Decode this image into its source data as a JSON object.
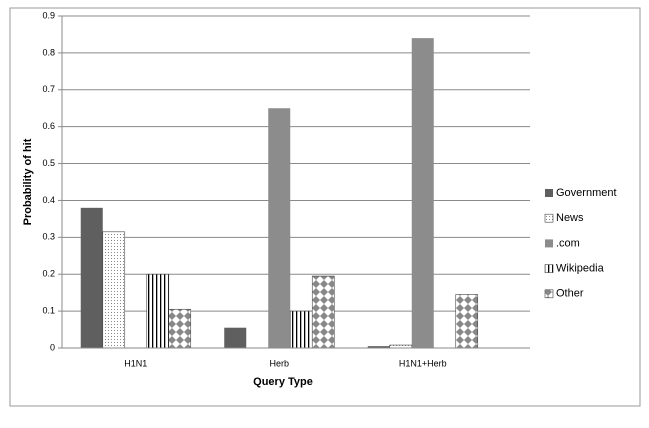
{
  "chart_data": {
    "type": "bar",
    "xlabel": "Query Type",
    "ylabel": "Probability of hit",
    "categories": [
      "H1N1",
      "Herb",
      "H1N1+Herb"
    ],
    "series": [
      {
        "name": "Government",
        "color": "#5f5f5f",
        "pattern": "solid",
        "values": [
          0.38,
          0.055,
          0.005
        ]
      },
      {
        "name": "News",
        "color": "#ffffff",
        "pattern": "dots",
        "values": [
          0.315,
          0,
          0.008
        ]
      },
      {
        "name": ".com",
        "color": "#8c8c8c",
        "pattern": "solid",
        "values": [
          0,
          0.65,
          0.84
        ]
      },
      {
        "name": "Wikipedia",
        "color": "#ffffff",
        "pattern": "vertical-stripes",
        "values": [
          0.2,
          0.1,
          0
        ]
      },
      {
        "name": "Other",
        "color": "#ffffff",
        "pattern": "diamonds",
        "values": [
          0.105,
          0.195,
          0.145
        ]
      }
    ],
    "ylim": [
      0,
      0.9
    ],
    "yticks": [
      0,
      0.1,
      0.2,
      0.3,
      0.4,
      0.5,
      0.6,
      0.7,
      0.8,
      0.9
    ],
    "grid": true,
    "legend": "right"
  }
}
